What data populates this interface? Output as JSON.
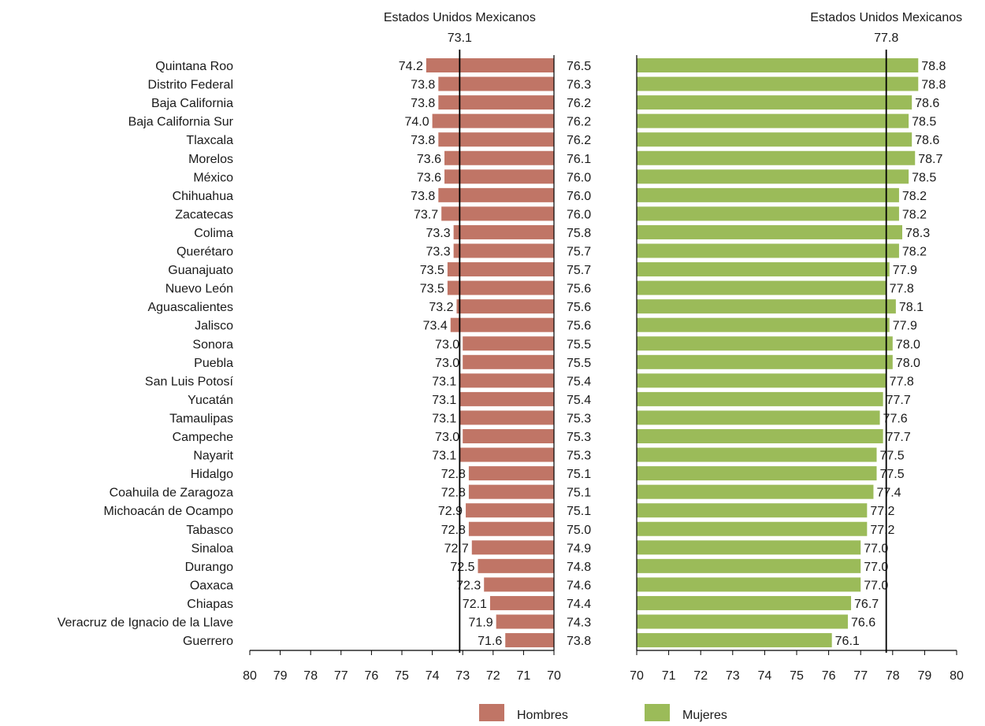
{
  "chart_data": {
    "type": "bar",
    "ylabel": "",
    "xlabel": "",
    "categories": [
      "Quintana Roo",
      "Distrito Federal",
      "Baja California",
      "Baja California Sur",
      "Tlaxcala",
      "Morelos",
      "México",
      "Chihuahua",
      "Zacatecas",
      "Colima",
      "Querétaro",
      "Guanajuato",
      "Nuevo León",
      "Aguascalientes",
      "Jalisco",
      "Sonora",
      "Puebla",
      "San Luis Potosí",
      "Yucatán",
      "Tamaulipas",
      "Campeche",
      "Nayarit",
      "Hidalgo",
      "Coahuila de Zaragoza",
      "Michoacán de Ocampo",
      "Tabasco",
      "Sinaloa",
      "Durango",
      "Oaxaca",
      "Chiapas",
      "Veracruz de Ignacio de la Llave",
      "Guerrero"
    ],
    "series": [
      {
        "name": "Hombres",
        "color": "#c07566",
        "values": [
          74.2,
          73.8,
          73.8,
          74.0,
          73.8,
          73.6,
          73.6,
          73.8,
          73.7,
          73.3,
          73.3,
          73.5,
          73.5,
          73.2,
          73.4,
          73.0,
          73.0,
          73.1,
          73.1,
          73.1,
          73.0,
          73.1,
          72.8,
          72.8,
          72.9,
          72.8,
          72.7,
          72.5,
          72.3,
          72.1,
          71.9,
          71.6
        ],
        "xlim": [
          80,
          70
        ],
        "ticks": [
          "80",
          "79",
          "78",
          "77",
          "76",
          "75",
          "74",
          "73",
          "72",
          "71",
          "70"
        ],
        "reference": {
          "label": "Estados Unidos Mexicanos",
          "value": 73.1,
          "value_text": "73.1"
        }
      },
      {
        "name": "Mujeres",
        "color": "#9bbb59",
        "values": [
          78.8,
          78.8,
          78.6,
          78.5,
          78.6,
          78.7,
          78.5,
          78.2,
          78.2,
          78.3,
          78.2,
          77.9,
          77.8,
          78.1,
          77.9,
          78.0,
          78.0,
          77.8,
          77.7,
          77.6,
          77.7,
          77.5,
          77.5,
          77.4,
          77.2,
          77.2,
          77.0,
          77.0,
          77.0,
          76.7,
          76.6,
          76.1
        ],
        "xlim": [
          70,
          80
        ],
        "ticks": [
          "70",
          "71",
          "72",
          "73",
          "74",
          "75",
          "76",
          "77",
          "78",
          "79",
          "80"
        ],
        "reference": {
          "label": "Estados Unidos Mexicanos",
          "value": 77.8,
          "value_text": "77.8"
        }
      }
    ],
    "middle_labels": [
      "76.5",
      "76.3",
      "76.2",
      "76.2",
      "76.2",
      "76.1",
      "76.0",
      "76.0",
      "76.0",
      "75.8",
      "75.7",
      "75.7",
      "75.6",
      "75.6",
      "75.6",
      "75.5",
      "75.5",
      "75.4",
      "75.4",
      "75.3",
      "75.3",
      "75.3",
      "75.1",
      "75.1",
      "75.1",
      "75.0",
      "74.9",
      "74.8",
      "74.6",
      "74.4",
      "74.3",
      "73.8"
    ],
    "legend": {
      "position": "bottom-center",
      "items": [
        "Hombres",
        "Mujeres"
      ]
    },
    "grid": false
  }
}
